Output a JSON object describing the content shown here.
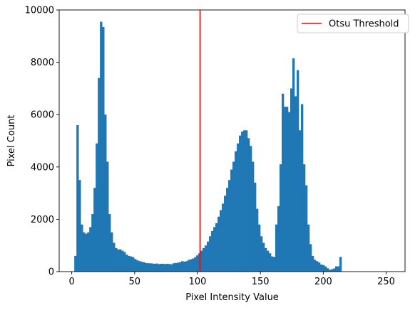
{
  "chart_data": {
    "type": "bar",
    "xlabel": "Pixel Intensity Value",
    "ylabel": "Pixel Count",
    "xlim": [
      -10,
      265
    ],
    "ylim": [
      0,
      10000
    ],
    "xticks": [
      0,
      50,
      100,
      150,
      200,
      250
    ],
    "yticks": [
      0,
      2000,
      4000,
      6000,
      8000,
      10000
    ],
    "bin_start": 2,
    "bin_width": 1.7,
    "bar_color": "#1f77b4",
    "values": [
      600,
      5600,
      3500,
      1800,
      1500,
      1450,
      1500,
      1700,
      2200,
      3200,
      4900,
      7400,
      9550,
      9350,
      6000,
      4200,
      2200,
      1500,
      1100,
      900,
      850,
      850,
      800,
      750,
      650,
      600,
      580,
      550,
      480,
      430,
      400,
      380,
      360,
      330,
      320,
      320,
      310,
      300,
      310,
      290,
      300,
      300,
      290,
      300,
      290,
      280,
      320,
      330,
      340,
      360,
      400,
      380,
      400,
      450,
      470,
      500,
      550,
      620,
      700,
      800,
      900,
      1000,
      1150,
      1350,
      1550,
      1700,
      1850,
      2100,
      2350,
      2600,
      2900,
      3200,
      3500,
      3900,
      4200,
      4600,
      4900,
      5200,
      5350,
      5400,
      5400,
      5100,
      4800,
      4200,
      3400,
      2400,
      1800,
      1350,
      1100,
      900,
      800,
      700,
      580,
      560,
      1800,
      2500,
      4100,
      6800,
      6300,
      6300,
      6100,
      7000,
      8150,
      6700,
      7700,
      5400,
      6400,
      4100,
      3300,
      1800,
      1050,
      600,
      450,
      400,
      350,
      270,
      250,
      200,
      130,
      70,
      90,
      120,
      200,
      200,
      560
    ],
    "threshold": {
      "x": 102,
      "label": "Otsu Threshold",
      "color": "#ff0000"
    }
  }
}
